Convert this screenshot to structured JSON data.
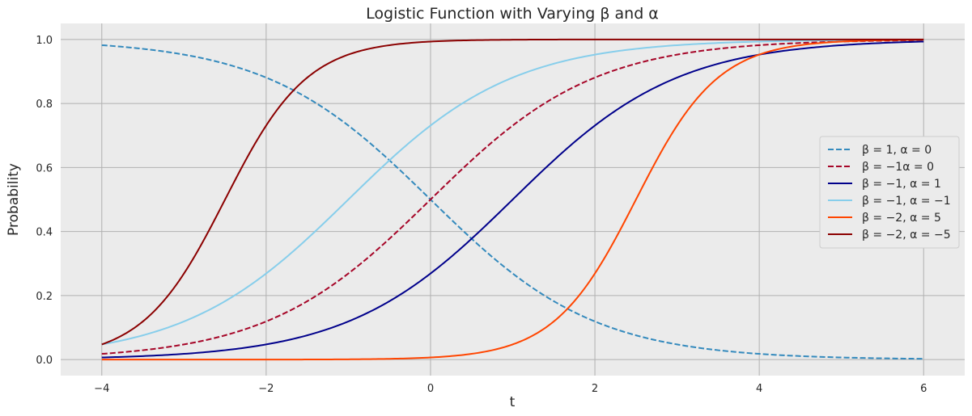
{
  "chart_data": {
    "type": "line",
    "title": "Logistic Function with Varying β and α",
    "xlabel": "t",
    "ylabel": "Probability",
    "xlim": [
      -4.5,
      6.5
    ],
    "ylim": [
      -0.05,
      1.05
    ],
    "xticks": [
      -4,
      -2,
      0,
      2,
      4,
      6
    ],
    "xtick_labels": [
      "−4",
      "−2",
      "0",
      "2",
      "4",
      "6"
    ],
    "yticks": [
      0.0,
      0.2,
      0.4,
      0.6,
      0.8,
      1.0
    ],
    "ytick_labels": [
      "0.0",
      "0.2",
      "0.4",
      "0.6",
      "0.8",
      "1.0"
    ],
    "grid": true,
    "legend_position": "center-right",
    "x_range": [
      -4,
      6
    ],
    "series": [
      {
        "name": "β = 1, α = 0",
        "beta": 1,
        "alpha": 0,
        "color": "#348abd",
        "dashed": true
      },
      {
        "name": "β = −1α = 0",
        "beta": -1,
        "alpha": 0,
        "color": "#a60628",
        "dashed": true
      },
      {
        "name": "β = −1, α = 1",
        "beta": -1,
        "alpha": 1,
        "color": "#00008b",
        "dashed": false
      },
      {
        "name": "β = −1, α = −1",
        "beta": -1,
        "alpha": -1,
        "color": "#87ceeb",
        "dashed": false
      },
      {
        "name": "β = −2, α = 5",
        "beta": -2,
        "alpha": 5,
        "color": "#ff4500",
        "dashed": false
      },
      {
        "name": "β = −2, α = −5",
        "beta": -2,
        "alpha": -5,
        "color": "#8b0000",
        "dashed": false
      }
    ]
  },
  "colors": {
    "plot_background": "#ebebeb",
    "grid": "#b0b0b0"
  }
}
